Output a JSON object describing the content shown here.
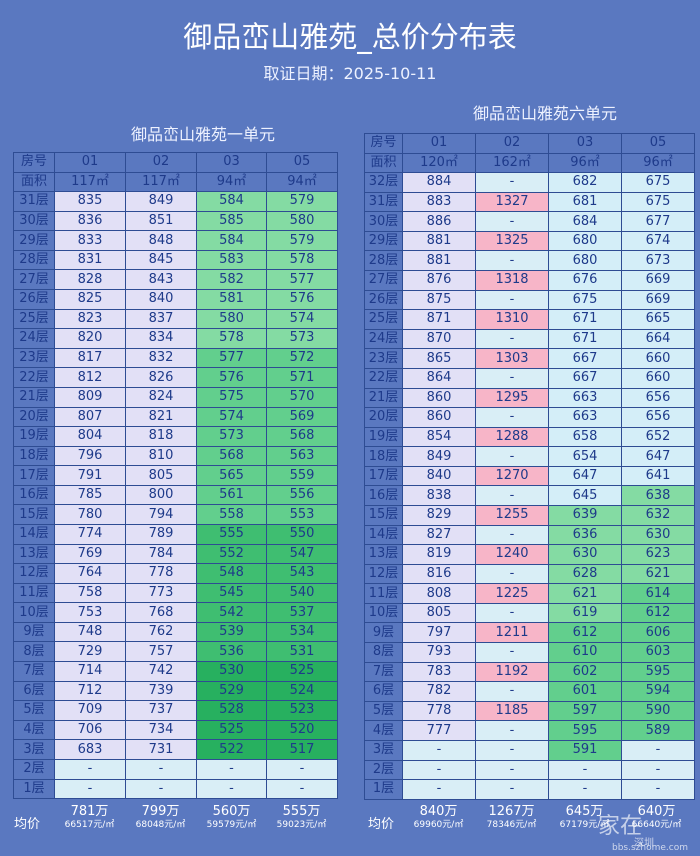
{
  "title": "御品峦山雅苑_总价分布表",
  "subtitle": "取证日期：2025-10-11",
  "avg_label": "均价",
  "watermark": {
    "logo": "家在",
    "city": "深圳",
    "site": "bbs.szhome.com"
  },
  "units": [
    {
      "name": "御品峦山雅苑一单元",
      "room_label": "房号",
      "area_label": "面积",
      "columns": [
        {
          "room": "01",
          "area": "117㎡",
          "total": "781万",
          "unit_price": "66517元/㎡"
        },
        {
          "room": "02",
          "area": "117㎡",
          "total": "799万",
          "unit_price": "68048元/㎡"
        },
        {
          "room": "03",
          "area": "94㎡",
          "total": "560万",
          "unit_price": "59579元/㎡"
        },
        {
          "room": "05",
          "area": "94㎡",
          "total": "555万",
          "unit_price": "59023元/㎡"
        }
      ],
      "rows": [
        {
          "floor": "31层",
          "prices": [
            "835",
            "849",
            "584",
            "579"
          ]
        },
        {
          "floor": "30层",
          "prices": [
            "836",
            "851",
            "585",
            "580"
          ]
        },
        {
          "floor": "29层",
          "prices": [
            "833",
            "848",
            "584",
            "579"
          ]
        },
        {
          "floor": "28层",
          "prices": [
            "831",
            "845",
            "583",
            "578"
          ]
        },
        {
          "floor": "27层",
          "prices": [
            "828",
            "843",
            "582",
            "577"
          ]
        },
        {
          "floor": "26层",
          "prices": [
            "825",
            "840",
            "581",
            "576"
          ]
        },
        {
          "floor": "25层",
          "prices": [
            "823",
            "837",
            "580",
            "574"
          ]
        },
        {
          "floor": "24层",
          "prices": [
            "820",
            "834",
            "578",
            "573"
          ]
        },
        {
          "floor": "23层",
          "prices": [
            "817",
            "832",
            "577",
            "572"
          ]
        },
        {
          "floor": "22层",
          "prices": [
            "812",
            "826",
            "576",
            "571"
          ]
        },
        {
          "floor": "21层",
          "prices": [
            "809",
            "824",
            "575",
            "570"
          ]
        },
        {
          "floor": "20层",
          "prices": [
            "807",
            "821",
            "574",
            "569"
          ]
        },
        {
          "floor": "19层",
          "prices": [
            "804",
            "818",
            "573",
            "568"
          ]
        },
        {
          "floor": "18层",
          "prices": [
            "796",
            "810",
            "568",
            "563"
          ]
        },
        {
          "floor": "17层",
          "prices": [
            "791",
            "805",
            "565",
            "559"
          ]
        },
        {
          "floor": "16层",
          "prices": [
            "785",
            "800",
            "561",
            "556"
          ]
        },
        {
          "floor": "15层",
          "prices": [
            "780",
            "794",
            "558",
            "553"
          ]
        },
        {
          "floor": "14层",
          "prices": [
            "774",
            "789",
            "555",
            "550"
          ]
        },
        {
          "floor": "13层",
          "prices": [
            "769",
            "784",
            "552",
            "547"
          ]
        },
        {
          "floor": "12层",
          "prices": [
            "764",
            "778",
            "548",
            "543"
          ]
        },
        {
          "floor": "11层",
          "prices": [
            "758",
            "773",
            "545",
            "540"
          ]
        },
        {
          "floor": "10层",
          "prices": [
            "753",
            "768",
            "542",
            "537"
          ]
        },
        {
          "floor": "9层",
          "prices": [
            "748",
            "762",
            "539",
            "534"
          ]
        },
        {
          "floor": "8层",
          "prices": [
            "729",
            "757",
            "536",
            "531"
          ]
        },
        {
          "floor": "7层",
          "prices": [
            "714",
            "742",
            "530",
            "525"
          ]
        },
        {
          "floor": "6层",
          "prices": [
            "712",
            "739",
            "529",
            "524"
          ]
        },
        {
          "floor": "5层",
          "prices": [
            "709",
            "737",
            "528",
            "523"
          ]
        },
        {
          "floor": "4层",
          "prices": [
            "706",
            "734",
            "525",
            "520"
          ]
        },
        {
          "floor": "3层",
          "prices": [
            "683",
            "731",
            "522",
            "517"
          ]
        },
        {
          "floor": "2层",
          "prices": [
            "-",
            "-",
            "-",
            "-"
          ]
        },
        {
          "floor": "1层",
          "prices": [
            "-",
            "-",
            "-",
            "-"
          ]
        }
      ]
    },
    {
      "name": "御品峦山雅苑六单元",
      "room_label": "房号",
      "area_label": "面积",
      "columns": [
        {
          "room": "01",
          "area": "120㎡",
          "total": "840万",
          "unit_price": "69960元/㎡"
        },
        {
          "room": "02",
          "area": "162㎡",
          "total": "1267万",
          "unit_price": "78346元/㎡"
        },
        {
          "room": "03",
          "area": "96㎡",
          "total": "645万",
          "unit_price": "67179元/㎡"
        },
        {
          "room": "05",
          "area": "96㎡",
          "total": "640万",
          "unit_price": "66640元/㎡"
        }
      ],
      "rows": [
        {
          "floor": "32层",
          "prices": [
            "884",
            "-",
            "682",
            "675"
          ]
        },
        {
          "floor": "31层",
          "prices": [
            "883",
            "1327",
            "681",
            "675"
          ]
        },
        {
          "floor": "30层",
          "prices": [
            "886",
            "-",
            "684",
            "677"
          ]
        },
        {
          "floor": "29层",
          "prices": [
            "881",
            "1325",
            "680",
            "674"
          ]
        },
        {
          "floor": "28层",
          "prices": [
            "881",
            "-",
            "680",
            "673"
          ]
        },
        {
          "floor": "27层",
          "prices": [
            "876",
            "1318",
            "676",
            "669"
          ]
        },
        {
          "floor": "26层",
          "prices": [
            "875",
            "-",
            "675",
            "669"
          ]
        },
        {
          "floor": "25层",
          "prices": [
            "871",
            "1310",
            "671",
            "665"
          ]
        },
        {
          "floor": "24层",
          "prices": [
            "870",
            "-",
            "671",
            "664"
          ]
        },
        {
          "floor": "23层",
          "prices": [
            "865",
            "1303",
            "667",
            "660"
          ]
        },
        {
          "floor": "22层",
          "prices": [
            "864",
            "-",
            "667",
            "660"
          ]
        },
        {
          "floor": "21层",
          "prices": [
            "860",
            "1295",
            "663",
            "656"
          ]
        },
        {
          "floor": "20层",
          "prices": [
            "860",
            "-",
            "663",
            "656"
          ]
        },
        {
          "floor": "19层",
          "prices": [
            "854",
            "1288",
            "658",
            "652"
          ]
        },
        {
          "floor": "18层",
          "prices": [
            "849",
            "-",
            "654",
            "647"
          ]
        },
        {
          "floor": "17层",
          "prices": [
            "840",
            "1270",
            "647",
            "641"
          ]
        },
        {
          "floor": "16层",
          "prices": [
            "838",
            "-",
            "645",
            "638"
          ]
        },
        {
          "floor": "15层",
          "prices": [
            "829",
            "1255",
            "639",
            "632"
          ]
        },
        {
          "floor": "14层",
          "prices": [
            "827",
            "-",
            "636",
            "630"
          ]
        },
        {
          "floor": "13层",
          "prices": [
            "819",
            "1240",
            "630",
            "623"
          ]
        },
        {
          "floor": "12层",
          "prices": [
            "816",
            "-",
            "628",
            "621"
          ]
        },
        {
          "floor": "11层",
          "prices": [
            "808",
            "1225",
            "621",
            "614"
          ]
        },
        {
          "floor": "10层",
          "prices": [
            "805",
            "-",
            "619",
            "612"
          ]
        },
        {
          "floor": "9层",
          "prices": [
            "797",
            "1211",
            "612",
            "606"
          ]
        },
        {
          "floor": "8层",
          "prices": [
            "793",
            "-",
            "610",
            "603"
          ]
        },
        {
          "floor": "7层",
          "prices": [
            "783",
            "1192",
            "602",
            "595"
          ]
        },
        {
          "floor": "6层",
          "prices": [
            "782",
            "-",
            "601",
            "594"
          ]
        },
        {
          "floor": "5层",
          "prices": [
            "778",
            "1185",
            "597",
            "590"
          ]
        },
        {
          "floor": "4层",
          "prices": [
            "777",
            "-",
            "595",
            "589"
          ]
        },
        {
          "floor": "3层",
          "prices": [
            "-",
            "-",
            "591",
            "-"
          ]
        },
        {
          "floor": "2层",
          "prices": [
            "-",
            "-",
            "-",
            "-"
          ]
        },
        {
          "floor": "1层",
          "prices": [
            "-",
            "-",
            "-",
            "-"
          ]
        }
      ]
    }
  ]
}
